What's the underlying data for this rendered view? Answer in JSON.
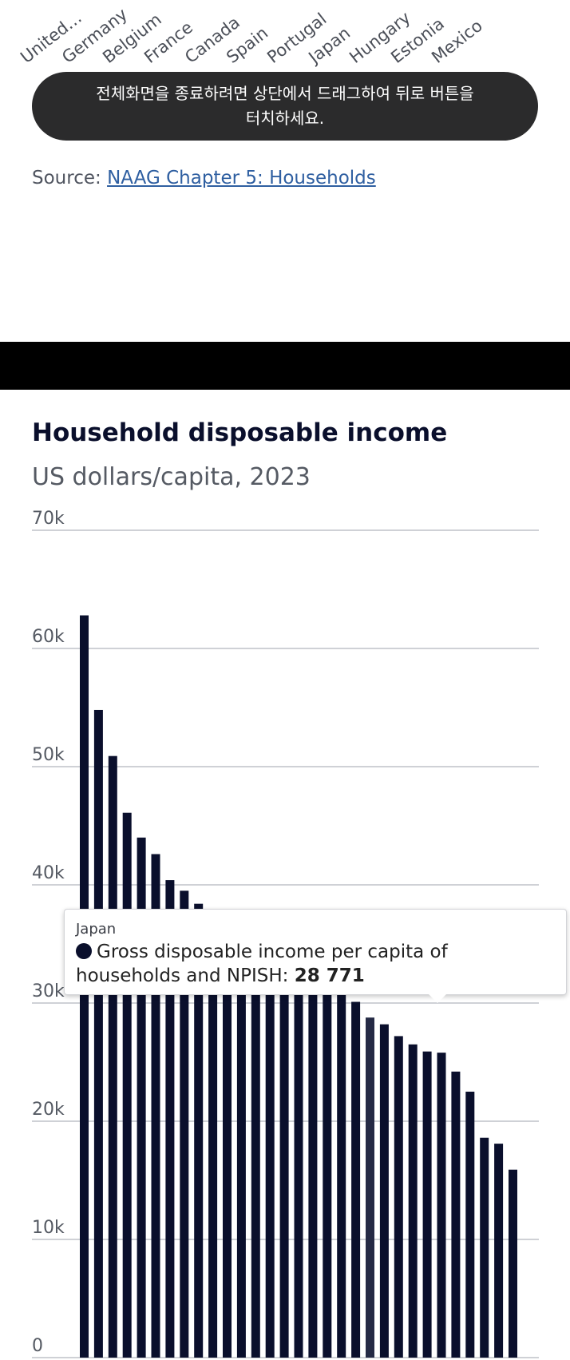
{
  "previous_chart": {
    "country_labels": [
      "United…",
      "Germany",
      "Belgium",
      "France",
      "Canada",
      "Spain",
      "Portugal",
      "Japan",
      "Hungary",
      "Estonia",
      "Mexico"
    ]
  },
  "toast": {
    "line1": "전체화면을 종료하려면 상단에서 드래그하여 뒤로 버튼을",
    "line2": "터치하세요."
  },
  "source": {
    "label": "Source: ",
    "link_text": "NAAG Chapter 5: Households"
  },
  "colors": {
    "bar": "#0a0f2c",
    "highlight_bar": "#252a45",
    "grid": "#cfd1d6",
    "toast_bg": "#2b2b2c",
    "link": "#2f5fa1"
  },
  "chart_data": {
    "type": "bar",
    "title": "Household disposable income",
    "subtitle": "US dollars/capita, 2023",
    "ylim": [
      0,
      70000
    ],
    "yticks": [
      0,
      10000,
      20000,
      30000,
      40000,
      50000,
      60000,
      70000
    ],
    "ytick_labels": [
      "0",
      "10k",
      "20k",
      "30k",
      "40k",
      "50k",
      "60k",
      "70k"
    ],
    "grid": true,
    "highlight_index": 20,
    "values": [
      62800,
      54800,
      50900,
      46100,
      44000,
      42600,
      40400,
      39500,
      38400,
      37700,
      37000,
      36300,
      35700,
      35100,
      34500,
      33900,
      33200,
      32300,
      31500,
      30100,
      28771,
      28200,
      27200,
      26500,
      25900,
      25800,
      24200,
      22500,
      18600,
      18100,
      15900
    ],
    "tooltip": {
      "country": "Japan",
      "series": "Gross disposable income per capita of households and NPISH",
      "value": "28 771"
    }
  }
}
